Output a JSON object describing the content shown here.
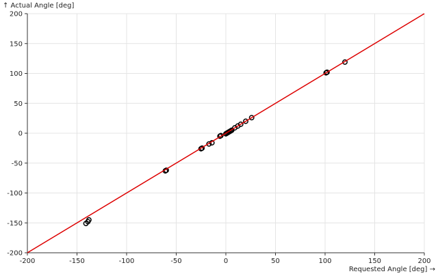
{
  "chart_data": {
    "type": "scatter",
    "title": "",
    "xlabel": "Requested Angle [deg] →",
    "ylabel": "↑ Actual Angle [deg]",
    "xlim": [
      -200,
      200
    ],
    "ylim": [
      -200,
      200
    ],
    "xticks": [
      -200,
      -150,
      -100,
      -50,
      0,
      50,
      100,
      150,
      200
    ],
    "yticks": [
      -200,
      -150,
      -100,
      -50,
      0,
      50,
      100,
      150,
      200
    ],
    "grid": true,
    "series": [
      {
        "marker": "open-circle",
        "color": "#000000",
        "points": [
          [
            -141,
            -151
          ],
          [
            -139,
            -148
          ],
          [
            -138,
            -145
          ],
          [
            -61,
            -63
          ],
          [
            -60,
            -62
          ],
          [
            -25,
            -26
          ],
          [
            -24,
            -25
          ],
          [
            -17,
            -18
          ],
          [
            -14,
            -16
          ],
          [
            -6,
            -5
          ],
          [
            -5,
            -4
          ],
          [
            0,
            -1
          ],
          [
            1,
            0
          ],
          [
            2,
            1
          ],
          [
            3,
            2
          ],
          [
            4,
            3
          ],
          [
            5,
            4
          ],
          [
            6,
            5
          ],
          [
            9,
            9
          ],
          [
            12,
            12
          ],
          [
            15,
            15
          ],
          [
            20,
            20
          ],
          [
            26,
            26
          ],
          [
            101,
            101
          ],
          [
            102,
            102
          ],
          [
            120,
            119
          ]
        ]
      }
    ],
    "reference_line": {
      "color": "#dd0000",
      "from": [
        -200,
        -200
      ],
      "to": [
        200,
        200
      ]
    }
  }
}
